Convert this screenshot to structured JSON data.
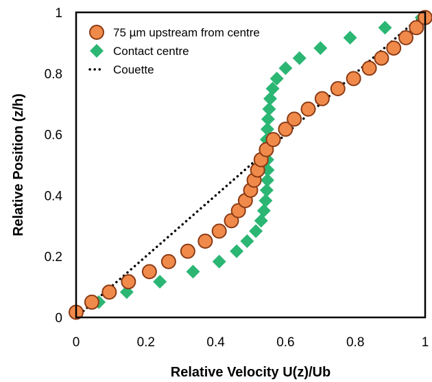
{
  "chart_data": {
    "type": "scatter",
    "xlabel": "Relative Velocity U(z)/Ub",
    "ylabel": "Relative Position (z/h)",
    "xlim": [
      0,
      1
    ],
    "ylim": [
      0,
      1
    ],
    "xticks": [
      "0",
      "0.2",
      "0.4",
      "0.6",
      "0.8",
      "1"
    ],
    "yticks": [
      "0",
      "0.2",
      "0.4",
      "0.6",
      "0.8",
      "1"
    ],
    "grid": false,
    "legend_position": "top-left",
    "colors": {
      "upstream_fill": "#f08a4b",
      "upstream_edge": "#8b3a14",
      "contact": "#2bb673",
      "couette": "#000000"
    },
    "series": [
      {
        "name": "75 µm upstream from centre",
        "marker": "circle",
        "points": [
          [
            0.0,
            0.017
          ],
          [
            0.045,
            0.05
          ],
          [
            0.095,
            0.083
          ],
          [
            0.15,
            0.117
          ],
          [
            0.21,
            0.15
          ],
          [
            0.265,
            0.183
          ],
          [
            0.32,
            0.217
          ],
          [
            0.37,
            0.25
          ],
          [
            0.41,
            0.283
          ],
          [
            0.445,
            0.317
          ],
          [
            0.465,
            0.35
          ],
          [
            0.485,
            0.383
          ],
          [
            0.5,
            0.417
          ],
          [
            0.51,
            0.45
          ],
          [
            0.52,
            0.483
          ],
          [
            0.53,
            0.517
          ],
          [
            0.545,
            0.55
          ],
          [
            0.565,
            0.583
          ],
          [
            0.6,
            0.617
          ],
          [
            0.625,
            0.65
          ],
          [
            0.665,
            0.683
          ],
          [
            0.705,
            0.717
          ],
          [
            0.75,
            0.75
          ],
          [
            0.795,
            0.783
          ],
          [
            0.84,
            0.817
          ],
          [
            0.875,
            0.85
          ],
          [
            0.91,
            0.883
          ],
          [
            0.945,
            0.917
          ],
          [
            0.975,
            0.95
          ],
          [
            1.0,
            0.983
          ]
        ]
      },
      {
        "name": "Contact centre",
        "marker": "diamond",
        "points": [
          [
            0.0,
            0.017
          ],
          [
            0.065,
            0.05
          ],
          [
            0.145,
            0.083
          ],
          [
            0.24,
            0.117
          ],
          [
            0.335,
            0.15
          ],
          [
            0.41,
            0.183
          ],
          [
            0.46,
            0.217
          ],
          [
            0.49,
            0.25
          ],
          [
            0.515,
            0.283
          ],
          [
            0.53,
            0.317
          ],
          [
            0.538,
            0.35
          ],
          [
            0.543,
            0.383
          ],
          [
            0.546,
            0.417
          ],
          [
            0.548,
            0.45
          ],
          [
            0.549,
            0.483
          ],
          [
            0.548,
            0.517
          ],
          [
            0.547,
            0.55
          ],
          [
            0.546,
            0.583
          ],
          [
            0.548,
            0.617
          ],
          [
            0.55,
            0.65
          ],
          [
            0.553,
            0.683
          ],
          [
            0.556,
            0.717
          ],
          [
            0.563,
            0.75
          ],
          [
            0.575,
            0.783
          ],
          [
            0.6,
            0.817
          ],
          [
            0.64,
            0.85
          ],
          [
            0.7,
            0.883
          ],
          [
            0.785,
            0.917
          ],
          [
            0.885,
            0.95
          ],
          [
            0.99,
            0.983
          ]
        ]
      },
      {
        "name": "Couette",
        "marker": "dotted-line",
        "points": [
          [
            0.0,
            0.0
          ],
          [
            1.0,
            1.0
          ]
        ]
      }
    ]
  }
}
